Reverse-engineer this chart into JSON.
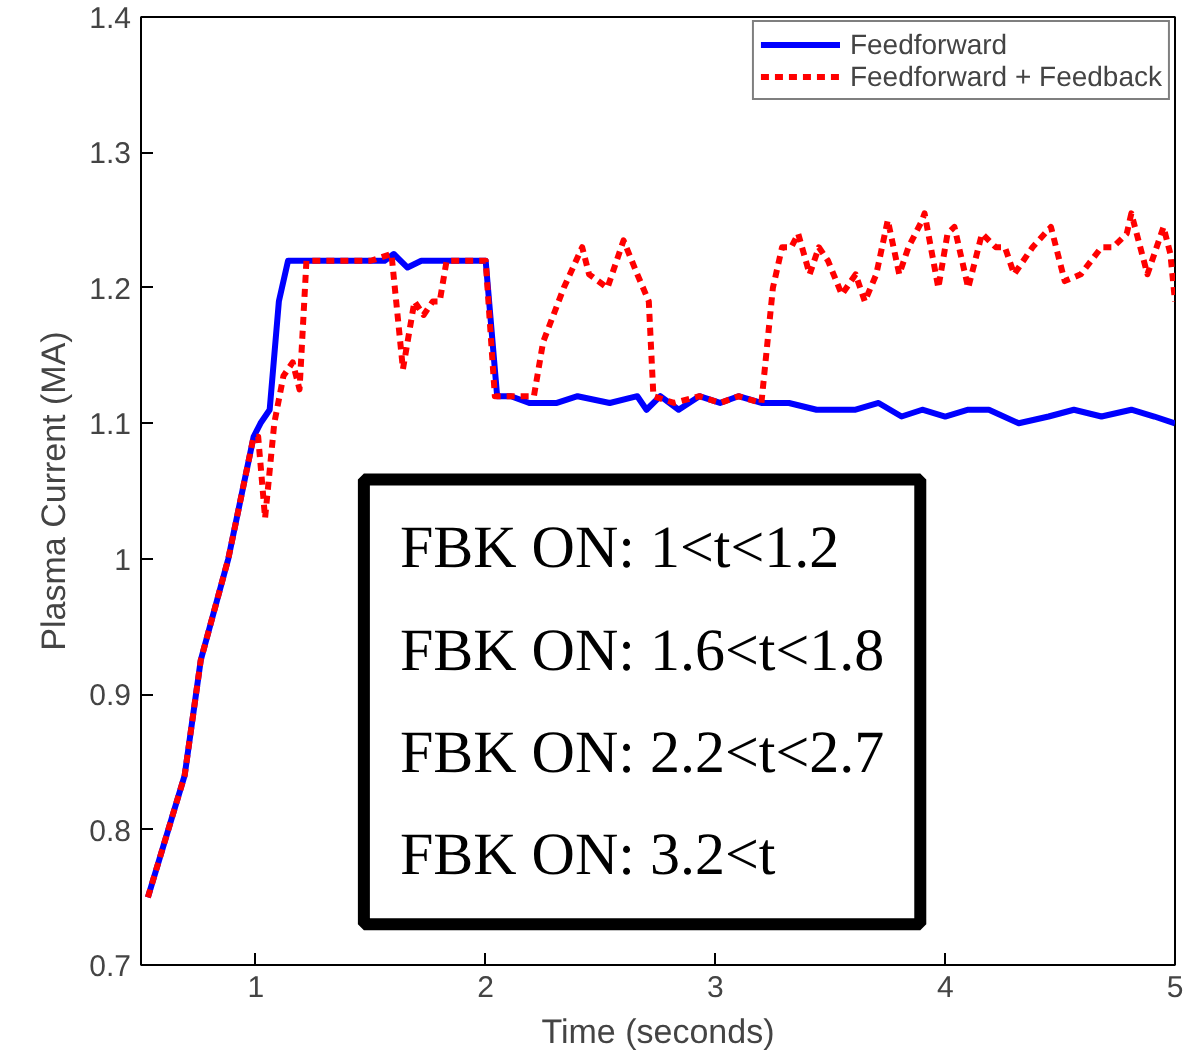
{
  "chart_data": {
    "type": "line",
    "xlabel": "Time (seconds)",
    "ylabel": "Plasma Current (MA)",
    "xlim": [
      0.5,
      5
    ],
    "ylim": [
      0.7,
      1.4
    ],
    "xticks": [
      1,
      2,
      3,
      4,
      5
    ],
    "yticks": [
      0.7,
      0.8,
      0.9,
      1,
      1.1,
      1.2,
      1.3,
      1.4
    ],
    "grid": false,
    "legend": "top right",
    "marker": "none",
    "annotations": [
      "FBK ON: 1<t<1.2",
      "FBK ON: 1.6<t<1.8",
      "FBK ON: 2.2<t<2.7",
      "FBK ON: 3.2<t"
    ],
    "series": [
      {
        "name": "Feedforward",
        "color": "#0000ff",
        "line_style": "solid",
        "x": [
          0.53,
          0.69,
          0.76,
          0.88,
          0.99,
          1.02,
          1.06,
          1.1,
          1.14,
          1.16,
          1.27,
          1.38,
          1.56,
          1.6,
          1.66,
          1.72,
          1.85,
          2.0,
          2.05,
          2.11,
          2.19,
          2.31,
          2.4,
          2.54,
          2.66,
          2.7,
          2.76,
          2.84,
          2.93,
          3.02,
          3.1,
          3.2,
          3.32,
          3.44,
          3.52,
          3.61,
          3.71,
          3.81,
          3.9,
          4.0,
          4.1,
          4.19,
          4.32,
          4.45,
          4.56,
          4.68,
          4.81,
          4.91,
          5.0
        ],
        "values": [
          0.75,
          0.84,
          0.925,
          1.0,
          1.09,
          1.1,
          1.11,
          1.19,
          1.22,
          1.22,
          1.22,
          1.22,
          1.22,
          1.225,
          1.215,
          1.22,
          1.22,
          1.22,
          1.12,
          1.12,
          1.115,
          1.115,
          1.12,
          1.115,
          1.12,
          1.11,
          1.12,
          1.11,
          1.12,
          1.115,
          1.12,
          1.115,
          1.115,
          1.11,
          1.11,
          1.11,
          1.115,
          1.105,
          1.11,
          1.105,
          1.11,
          1.11,
          1.1,
          1.105,
          1.11,
          1.105,
          1.11,
          1.105,
          1.1
        ]
      },
      {
        "name": "Feedforward + Feedback",
        "color": "#ff0000",
        "line_style": "dashed",
        "x": [
          0.53,
          0.69,
          0.76,
          0.88,
          0.99,
          1.01,
          1.04,
          1.08,
          1.12,
          1.16,
          1.19,
          1.22,
          1.27,
          1.38,
          1.5,
          1.59,
          1.64,
          1.69,
          1.73,
          1.77,
          1.8,
          1.83,
          2.0,
          2.04,
          2.12,
          2.21,
          2.25,
          2.34,
          2.42,
          2.45,
          2.53,
          2.6,
          2.66,
          2.71,
          2.73,
          2.82,
          2.93,
          3.02,
          3.1,
          3.2,
          3.25,
          3.29,
          3.33,
          3.36,
          3.41,
          3.45,
          3.49,
          3.55,
          3.61,
          3.65,
          3.7,
          3.75,
          3.8,
          3.84,
          3.9,
          3.91,
          3.97,
          4.01,
          4.04,
          4.1,
          4.16,
          4.22,
          4.26,
          4.3,
          4.38,
          4.46,
          4.52,
          4.59,
          4.68,
          4.73,
          4.79,
          4.81,
          4.88,
          4.95,
          4.98,
          5.0
        ],
        "values": [
          0.75,
          0.84,
          0.925,
          1.0,
          1.09,
          1.09,
          1.03,
          1.1,
          1.135,
          1.145,
          1.125,
          1.22,
          1.22,
          1.22,
          1.22,
          1.225,
          1.14,
          1.19,
          1.18,
          1.19,
          1.19,
          1.22,
          1.22,
          1.12,
          1.12,
          1.12,
          1.16,
          1.2,
          1.23,
          1.21,
          1.2,
          1.235,
          1.21,
          1.19,
          1.12,
          1.115,
          1.12,
          1.115,
          1.12,
          1.115,
          1.2,
          1.23,
          1.23,
          1.24,
          1.21,
          1.23,
          1.22,
          1.195,
          1.21,
          1.19,
          1.21,
          1.25,
          1.21,
          1.23,
          1.25,
          1.255,
          1.2,
          1.24,
          1.245,
          1.2,
          1.24,
          1.23,
          1.23,
          1.21,
          1.23,
          1.245,
          1.205,
          1.21,
          1.23,
          1.23,
          1.24,
          1.255,
          1.21,
          1.245,
          1.225,
          1.19
        ]
      }
    ]
  }
}
